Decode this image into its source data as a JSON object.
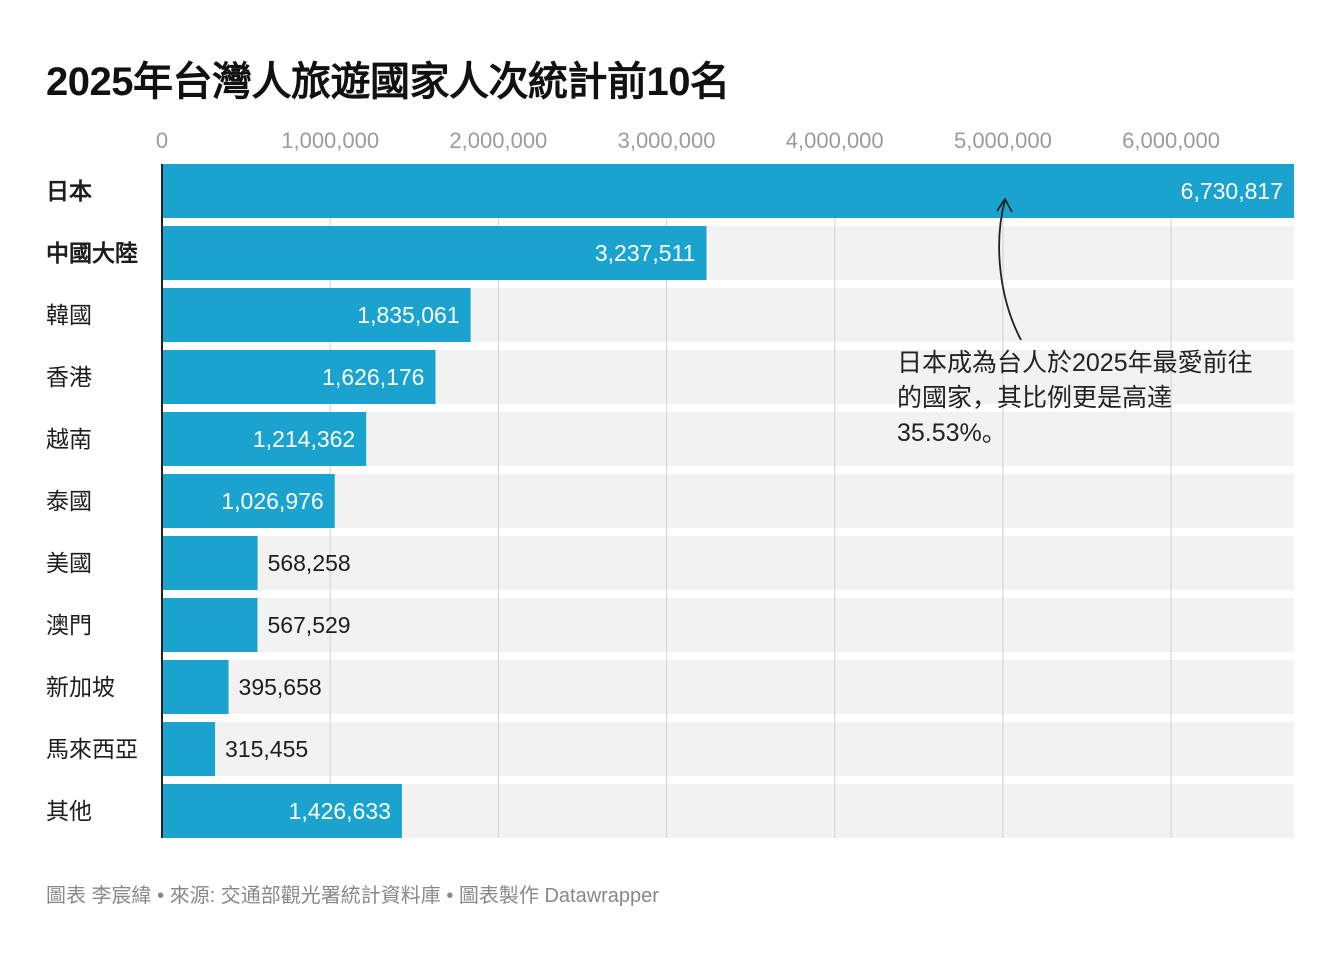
{
  "chart_data": {
    "type": "bar",
    "orientation": "horizontal",
    "title": "2025年台灣人旅遊國家人次統計前10名",
    "categories": [
      "日本",
      "中國大陸",
      "韓國",
      "香港",
      "越南",
      "泰國",
      "美國",
      "澳門",
      "新加坡",
      "馬來西亞",
      "其他"
    ],
    "values": [
      6730817,
      3237511,
      1835061,
      1626176,
      1214362,
      1026976,
      568258,
      567529,
      395658,
      315455,
      1426633
    ],
    "value_labels": [
      "6,730,817",
      "3,237,511",
      "1,835,061",
      "1,626,176",
      "1,214,362",
      "1,026,976",
      "568,258",
      "567,529",
      "395,658",
      "315,455",
      "1,426,633"
    ],
    "bold_categories": [
      "日本",
      "中國大陸"
    ],
    "x_ticks": [
      0,
      1000000,
      2000000,
      3000000,
      4000000,
      5000000,
      6000000
    ],
    "x_tick_labels": [
      "0",
      "1,000,000",
      "2,000,000",
      "3,000,000",
      "4,000,000",
      "5,000,000",
      "6,000,000"
    ],
    "xlim": [
      0,
      6730817
    ],
    "axis_position": "top",
    "grid": true,
    "legend": "none",
    "annotation": {
      "text": "日本成為台人於2025年最愛前往的國家，其比例更是高達 35.53%。",
      "target": "日本"
    },
    "colors": {
      "bar": "#1ba3cf",
      "track": "#f2f2f2",
      "grid": "#d6d6d6",
      "tick_text": "#9b9b9b",
      "axis_line": "#222222"
    }
  },
  "footer": "圖表 李宸緯 • 來源: 交通部觀光署統計資料庫 • 圖表製作 Datawrapper"
}
